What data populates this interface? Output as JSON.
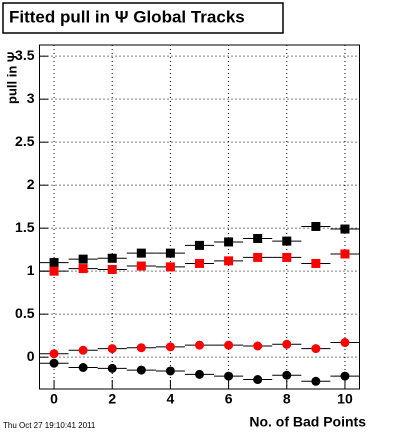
{
  "chart_data": {
    "type": "scatter",
    "title": "Fitted pull in  Ψ   Global Tracks",
    "x_label": "No. of Bad Points",
    "y_label": "pull in Ψ",
    "timestamp": "Thu Oct 27 19:10:41 2011",
    "x": [
      0,
      1,
      2,
      3,
      4,
      5,
      6,
      7,
      8,
      9,
      10
    ],
    "xerr": 0.5,
    "series": [
      {
        "color": "#000000",
        "marker": "square",
        "values": [
          1.1,
          1.14,
          1.15,
          1.21,
          1.21,
          1.3,
          1.34,
          1.38,
          1.35,
          1.52,
          1.49
        ]
      },
      {
        "color": "#ff0000",
        "marker": "square",
        "values": [
          1.0,
          1.03,
          1.02,
          1.06,
          1.05,
          1.09,
          1.12,
          1.16,
          1.16,
          1.09,
          1.2
        ]
      },
      {
        "color": "#ff0000",
        "marker": "circle",
        "values": [
          0.04,
          0.08,
          0.1,
          0.11,
          0.12,
          0.14,
          0.14,
          0.13,
          0.15,
          0.1,
          0.17
        ]
      },
      {
        "color": "#000000",
        "marker": "circle",
        "values": [
          -0.07,
          -0.12,
          -0.13,
          -0.15,
          -0.16,
          -0.2,
          -0.22,
          -0.26,
          -0.21,
          -0.28,
          -0.22
        ]
      }
    ],
    "xlim": [
      -0.5,
      10.5
    ],
    "ylim": [
      -0.37,
      3.63
    ],
    "xticks": [
      0,
      2,
      4,
      6,
      8,
      10
    ],
    "yticks": [
      0,
      0.5,
      1,
      1.5,
      2,
      2.5,
      3,
      3.5
    ],
    "grid": true
  }
}
